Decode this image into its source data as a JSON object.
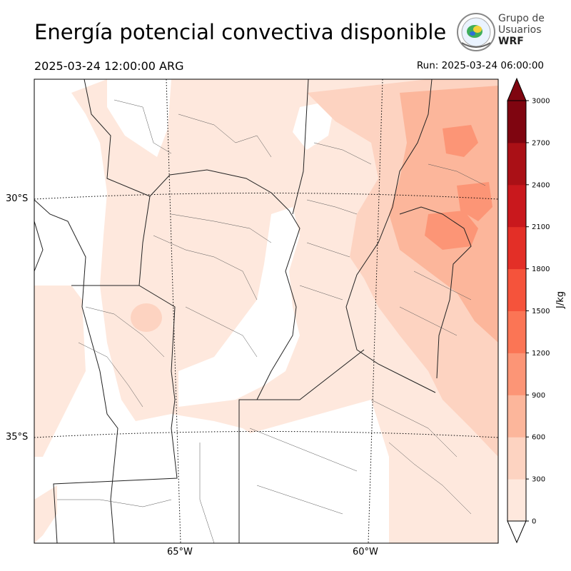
{
  "title": "Energía potencial convectiva disponible",
  "valid_time": "2025-03-24 12:00:00 ARG",
  "run_time": "Run: 2025-03-24 06:00:00",
  "logo": {
    "line1": "Grupo de",
    "line2": "Usuarios",
    "line3": "WRF"
  },
  "map": {
    "lat_labels": [
      "30°S",
      "35°S"
    ],
    "lon_labels": [
      "65°W",
      "60°W"
    ]
  },
  "colorbar": {
    "units": "J/kg",
    "ticks": [
      "0",
      "300",
      "600",
      "900",
      "1200",
      "1500",
      "1800",
      "2100",
      "2400",
      "2700",
      "3000"
    ],
    "colors": [
      "#fee8dd",
      "#fdd3c1",
      "#fcb69b",
      "#fc9576",
      "#fb7555",
      "#f5533b",
      "#e32f27",
      "#c9181d",
      "#aa1016",
      "#7f0510"
    ],
    "extend_max": true,
    "extend_min": true
  }
}
